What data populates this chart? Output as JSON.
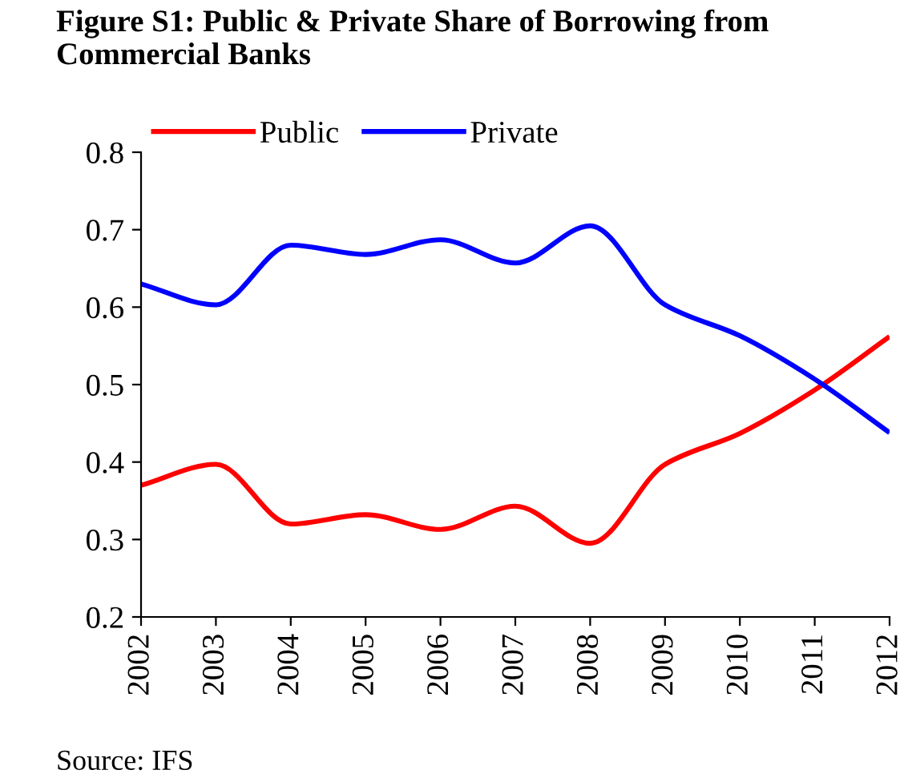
{
  "chart_data": {
    "type": "line",
    "title": "Figure S1: Public & Private Share of Borrowing from Commercial Banks",
    "categories": [
      "2002",
      "2003",
      "2004",
      "2005",
      "2006",
      "2007",
      "2008",
      "2009",
      "2010",
      "2011",
      "2012"
    ],
    "series": [
      {
        "name": "Public",
        "color": "#ff0000",
        "values": [
          0.37,
          0.397,
          0.32,
          0.332,
          0.313,
          0.343,
          0.295,
          0.397,
          0.437,
          0.493,
          0.562
        ]
      },
      {
        "name": "Private",
        "color": "#0000ff",
        "values": [
          0.63,
          0.603,
          0.68,
          0.668,
          0.687,
          0.657,
          0.705,
          0.603,
          0.563,
          0.507,
          0.438
        ]
      }
    ],
    "ylim": [
      0.2,
      0.8
    ],
    "yticks": [
      0.2,
      0.3,
      0.4,
      0.5,
      0.6,
      0.7,
      0.8
    ],
    "grid": false,
    "legend": "top left",
    "marker": "none",
    "line_style": "solid",
    "annotations": [
      "Source: IFS"
    ]
  }
}
